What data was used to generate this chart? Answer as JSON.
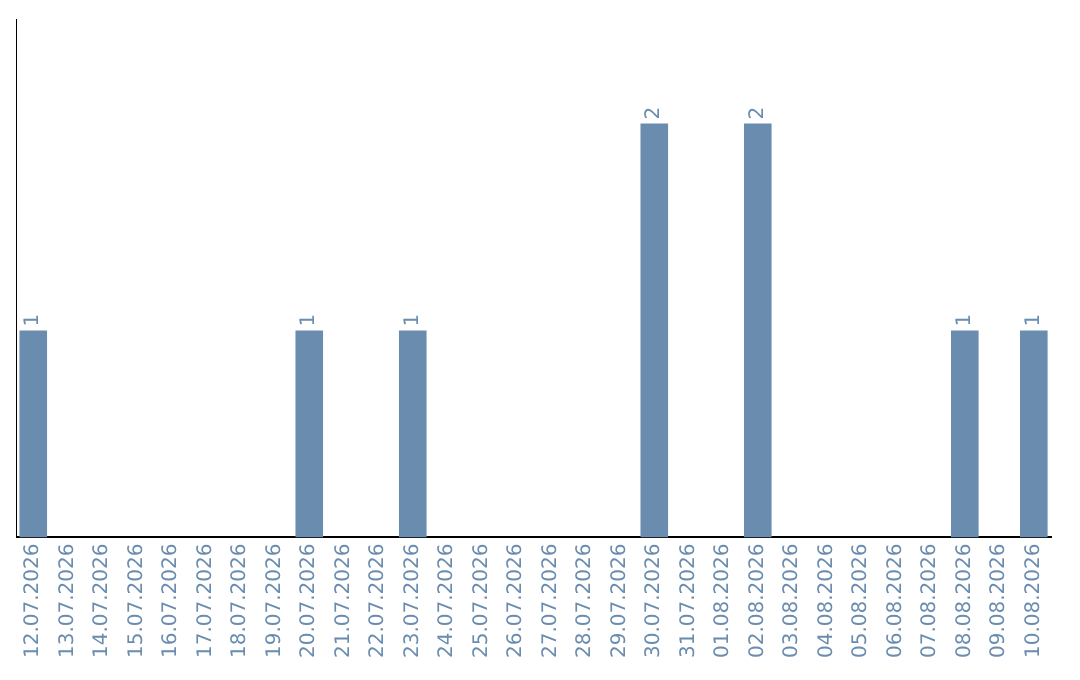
{
  "chart_data": {
    "type": "bar",
    "categories": [
      "12.07.2026",
      "13.07.2026",
      "14.07.2026",
      "15.07.2026",
      "16.07.2026",
      "17.07.2026",
      "18.07.2026",
      "19.07.2026",
      "20.07.2026",
      "21.07.2026",
      "22.07.2026",
      "23.07.2026",
      "24.07.2026",
      "25.07.2026",
      "26.07.2026",
      "27.07.2026",
      "28.07.2026",
      "29.07.2026",
      "30.07.2026",
      "31.07.2026",
      "01.08.2026",
      "02.08.2026",
      "03.08.2026",
      "04.08.2026",
      "05.08.2026",
      "06.08.2026",
      "07.08.2026",
      "08.08.2026",
      "09.08.2026",
      "10.08.2026"
    ],
    "values": [
      1,
      0,
      0,
      0,
      0,
      0,
      0,
      0,
      1,
      0,
      0,
      1,
      0,
      0,
      0,
      0,
      0,
      0,
      2,
      0,
      0,
      2,
      0,
      0,
      0,
      0,
      0,
      1,
      0,
      1
    ],
    "color": "#6a8caf",
    "value_labels": [
      "1",
      null,
      null,
      null,
      null,
      null,
      null,
      null,
      "1",
      null,
      null,
      "1",
      null,
      null,
      null,
      null,
      null,
      null,
      "2",
      null,
      null,
      "2",
      null,
      null,
      null,
      null,
      null,
      "1",
      null,
      "1"
    ],
    "grid": false,
    "legend": false,
    "tick_labels": "x"
  }
}
